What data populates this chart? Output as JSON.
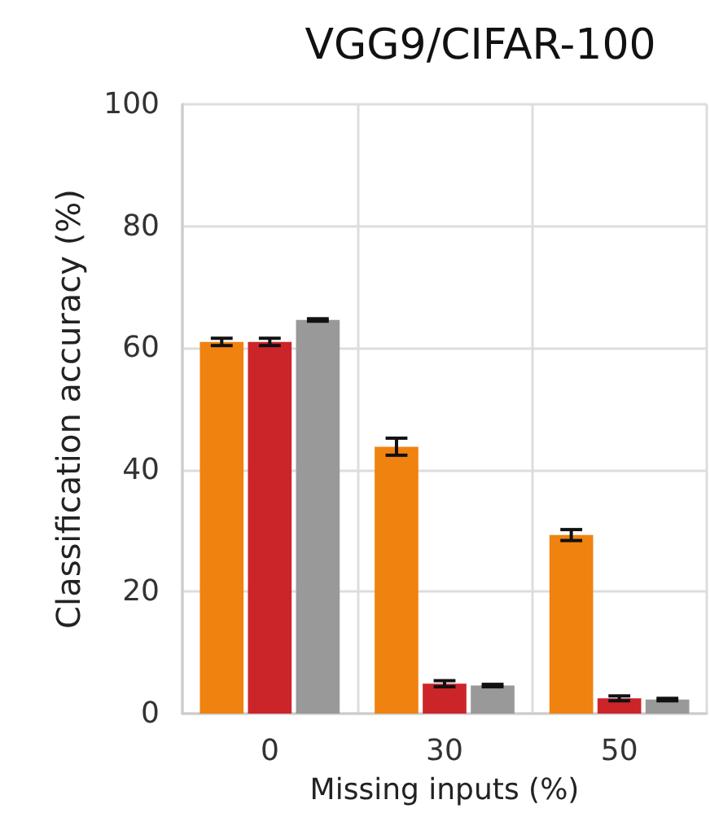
{
  "chart_data": {
    "type": "bar",
    "title": "VGG9/CIFAR-100",
    "xlabel": "Missing inputs (%)",
    "ylabel": "Classification accuracy (%)",
    "categories": [
      "0",
      "30",
      "50"
    ],
    "series": [
      {
        "color": "#f0820f",
        "values": [
          61,
          43.8,
          29.3
        ],
        "errors": [
          0.6,
          1.4,
          0.9
        ]
      },
      {
        "color": "#cc2529",
        "values": [
          61,
          4.9,
          2.5
        ],
        "errors": [
          0.6,
          0.5,
          0.4
        ]
      },
      {
        "color": "#999999",
        "values": [
          64.6,
          4.6,
          2.3
        ],
        "errors": [
          0.2,
          0.2,
          0.2
        ]
      }
    ],
    "ylim": [
      0,
      100
    ],
    "yticks": [
      0,
      20,
      40,
      60,
      80,
      100
    ],
    "grid": true
  }
}
